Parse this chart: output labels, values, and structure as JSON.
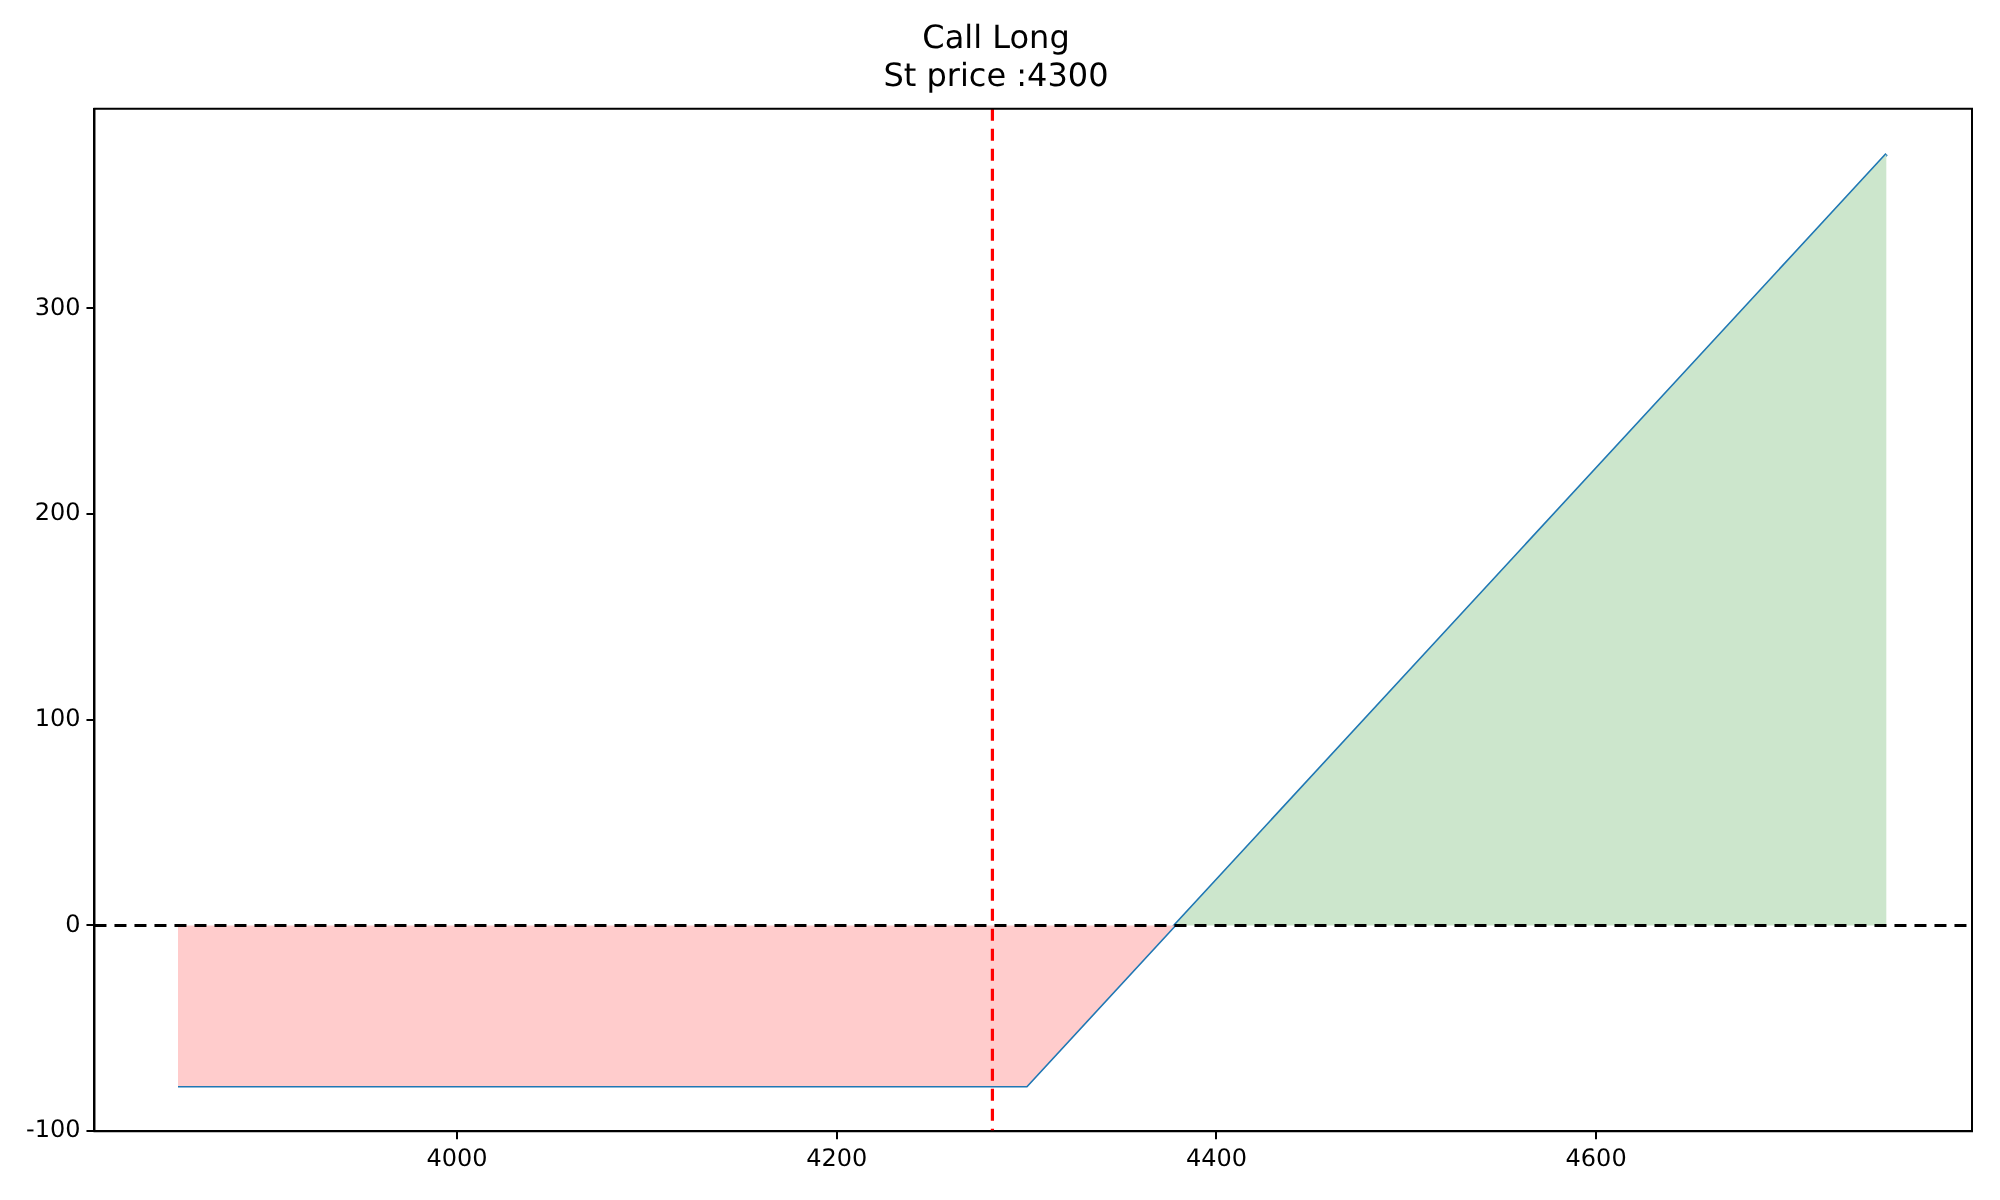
{
  "chart_data": {
    "type": "line",
    "title": "Call Long",
    "subtitle": "St price :4300",
    "series": [
      {
        "type": "area",
        "color": "#ffcccc",
        "x": [
          3853,
          4300,
          4378
        ],
        "values": [
          -78,
          -78,
          0
        ]
      },
      {
        "type": "area",
        "color": "#cce6cc",
        "x": [
          4378,
          4753
        ],
        "values": [
          0,
          375
        ]
      },
      {
        "type": "line",
        "color": "#1f77b4",
        "x": [
          3853,
          4300,
          4753
        ],
        "values": [
          -78,
          -78,
          375
        ]
      }
    ],
    "xlim": [
      3809,
      4798
    ],
    "xticks": [
      4000,
      4200,
      4400,
      4600
    ],
    "ylim": [
      -100,
      397
    ],
    "yticks": [
      -100,
      0,
      100,
      200,
      300
    ],
    "ref_lines": [
      {
        "axis": "x",
        "value": 4282,
        "color": "#ff0000",
        "line_style": "dashed"
      },
      {
        "axis": "y",
        "value": 0,
        "color": "#000000",
        "line_style": "dashed"
      }
    ],
    "grid": false,
    "legend": false,
    "marker": "none"
  }
}
